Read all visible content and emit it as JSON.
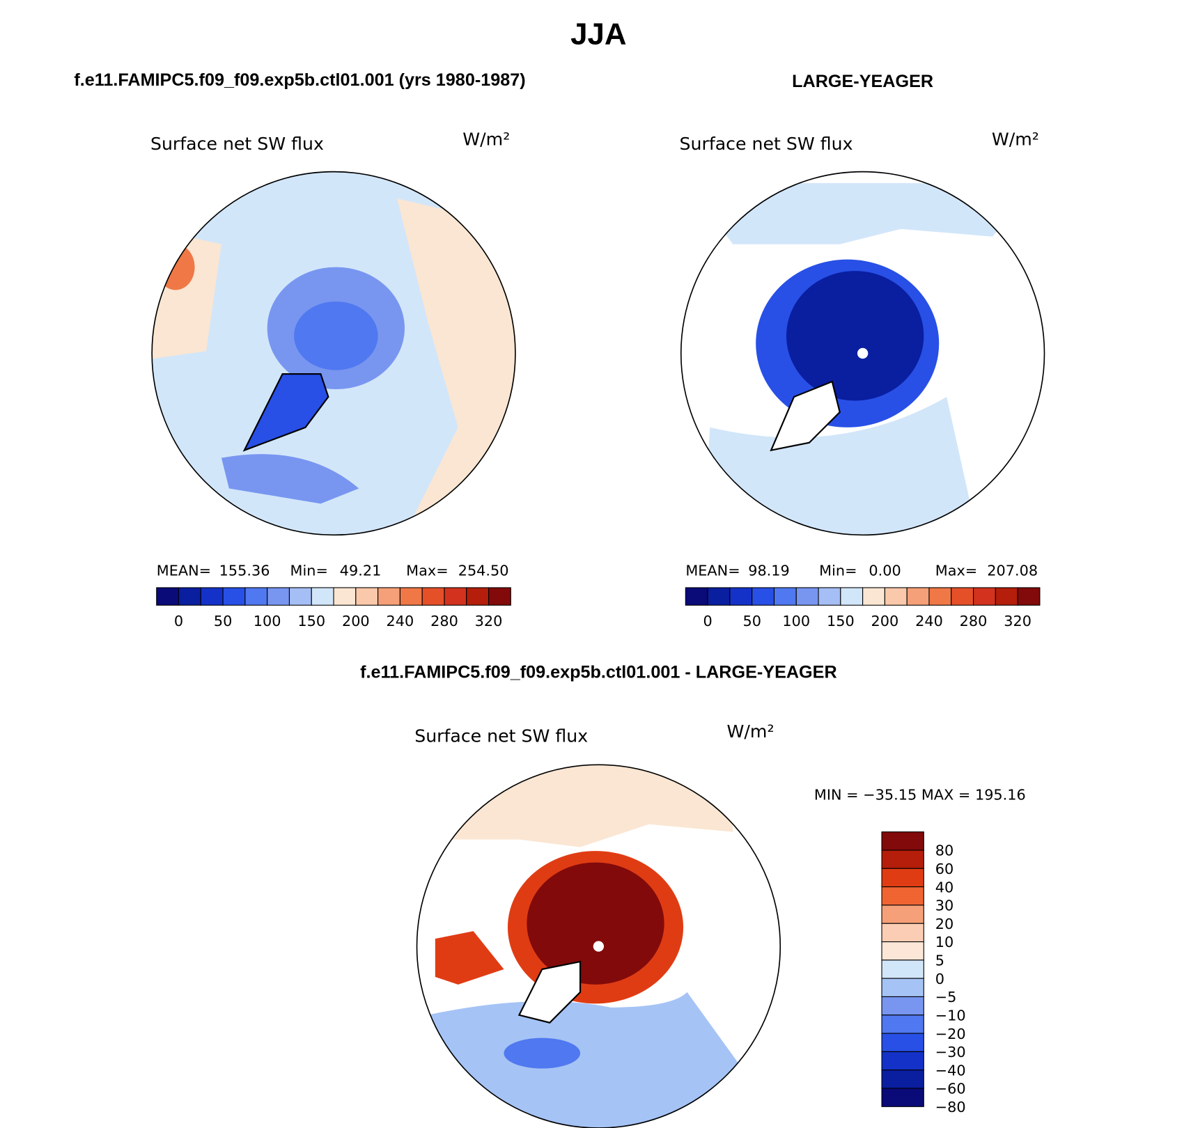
{
  "title": "JJA",
  "panels": [
    {
      "case": "f.e11.FAMIPC5.f09_f09.exp5b.ctl01.001 (yrs 1980-1987)",
      "variable": "Surface net SW flux",
      "units": "W/m²",
      "stats": [
        "MEAN=",
        "155.36",
        "Min=",
        "49.21",
        "Max=",
        "254.50"
      ],
      "colorbar": {
        "labels": [
          0,
          50,
          100,
          150,
          200,
          240,
          280,
          320
        ],
        "colors": [
          "#0a0a78",
          "#0a1ea0",
          "#1432c8",
          "#2850e6",
          "#5078f0",
          "#7896f0",
          "#a5bef5",
          "#d2e6fa",
          "#fae6d2",
          "#fac8aa",
          "#f5a078",
          "#f07846",
          "#e65028",
          "#d2321e",
          "#b41e0a",
          "#820a0a"
        ]
      }
    },
    {
      "case": "LARGE-YEAGER",
      "variable": "Surface net SW flux",
      "units": "W/m²",
      "stats": [
        "MEAN=",
        "98.19",
        "Min=",
        "0.00",
        "Max=",
        "207.08"
      ],
      "colorbar": {
        "labels": [
          0,
          50,
          100,
          150,
          200,
          240,
          280,
          320
        ],
        "colors": [
          "#0a0a78",
          "#0a1ea0",
          "#1432c8",
          "#2850e6",
          "#5078f0",
          "#7896f0",
          "#a5bef5",
          "#d2e6fa",
          "#fae6d2",
          "#fac8aa",
          "#f5a078",
          "#f07846",
          "#e65028",
          "#d2321e",
          "#b41e0a",
          "#820a0a"
        ]
      }
    }
  ],
  "difference": {
    "case": "f.e11.FAMIPC5.f09_f09.exp5b.ctl01.001 - LARGE-YEAGER",
    "variable": "Surface net SW flux",
    "units": "W/m²",
    "stats": "MIN = −35.15 MAX = 195.16",
    "colorbar": {
      "labels": [
        "80",
        "60",
        "40",
        "30",
        "20",
        "10",
        "5",
        "0",
        "−5",
        "−10",
        "−20",
        "−30",
        "−40",
        "−60",
        "−80"
      ],
      "colors": [
        "#820a0a",
        "#b41e0a",
        "#e03c14",
        "#f06432",
        "#f5a078",
        "#facdb4",
        "#fbe6d7",
        "#d2e6fa",
        "#a5c3f5",
        "#7896f0",
        "#5078f0",
        "#2850e6",
        "#1432c8",
        "#0a1ea0",
        "#0a0a78"
      ]
    }
  }
}
